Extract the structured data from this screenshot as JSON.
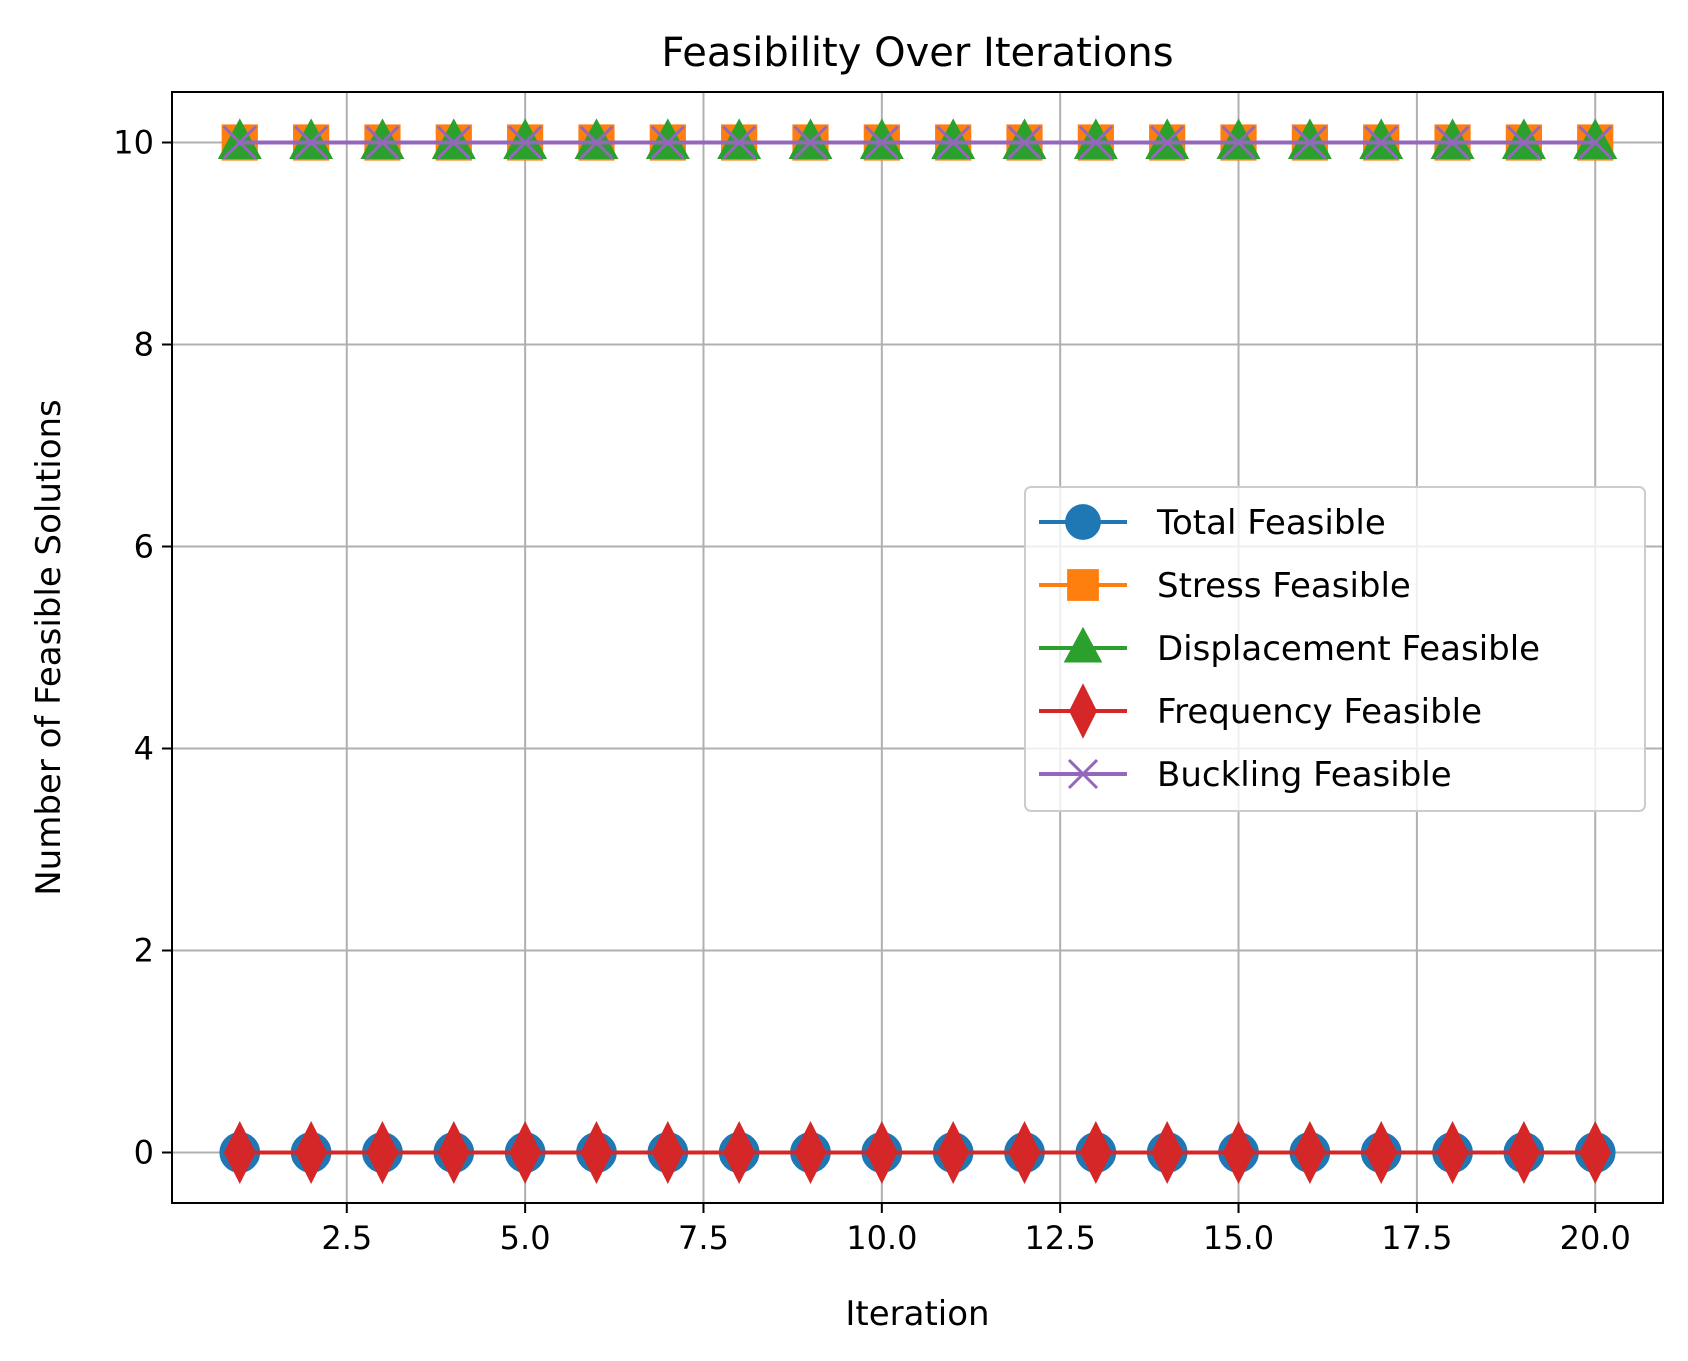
{
  "chart_data": {
    "type": "line",
    "title": "Feasibility Over Iterations",
    "xlabel": "Iteration",
    "ylabel": "Number of Feasible Solutions",
    "x": [
      1,
      2,
      3,
      4,
      5,
      6,
      7,
      8,
      9,
      10,
      11,
      12,
      13,
      14,
      15,
      16,
      17,
      18,
      19,
      20
    ],
    "xlim": [
      0.05,
      20.95
    ],
    "ylim": [
      -0.5,
      10.5
    ],
    "xticks": [
      2.5,
      5.0,
      7.5,
      10.0,
      12.5,
      15.0,
      17.5,
      20.0
    ],
    "xtick_labels": [
      "2.5",
      "5.0",
      "7.5",
      "10.0",
      "12.5",
      "15.0",
      "17.5",
      "20.0"
    ],
    "yticks": [
      0,
      2,
      4,
      6,
      8,
      10
    ],
    "ytick_labels": [
      "0",
      "2",
      "4",
      "6",
      "8",
      "10"
    ],
    "grid": true,
    "legend_position": "center-right",
    "series": [
      {
        "name": "Total Feasible",
        "color": "#1f77b4",
        "marker": "circle",
        "values": [
          0,
          0,
          0,
          0,
          0,
          0,
          0,
          0,
          0,
          0,
          0,
          0,
          0,
          0,
          0,
          0,
          0,
          0,
          0,
          0
        ]
      },
      {
        "name": "Stress Feasible",
        "color": "#ff7f0e",
        "marker": "square",
        "values": [
          10,
          10,
          10,
          10,
          10,
          10,
          10,
          10,
          10,
          10,
          10,
          10,
          10,
          10,
          10,
          10,
          10,
          10,
          10,
          10
        ]
      },
      {
        "name": "Displacement Feasible",
        "color": "#2ca02c",
        "marker": "triangle",
        "values": [
          10,
          10,
          10,
          10,
          10,
          10,
          10,
          10,
          10,
          10,
          10,
          10,
          10,
          10,
          10,
          10,
          10,
          10,
          10,
          10
        ]
      },
      {
        "name": "Frequency Feasible",
        "color": "#d62728",
        "marker": "thin-diamond",
        "values": [
          0,
          0,
          0,
          0,
          0,
          0,
          0,
          0,
          0,
          0,
          0,
          0,
          0,
          0,
          0,
          0,
          0,
          0,
          0,
          0
        ]
      },
      {
        "name": "Buckling Feasible",
        "color": "#9467bd",
        "marker": "x",
        "values": [
          10,
          10,
          10,
          10,
          10,
          10,
          10,
          10,
          10,
          10,
          10,
          10,
          10,
          10,
          10,
          10,
          10,
          10,
          10,
          10
        ]
      }
    ]
  }
}
